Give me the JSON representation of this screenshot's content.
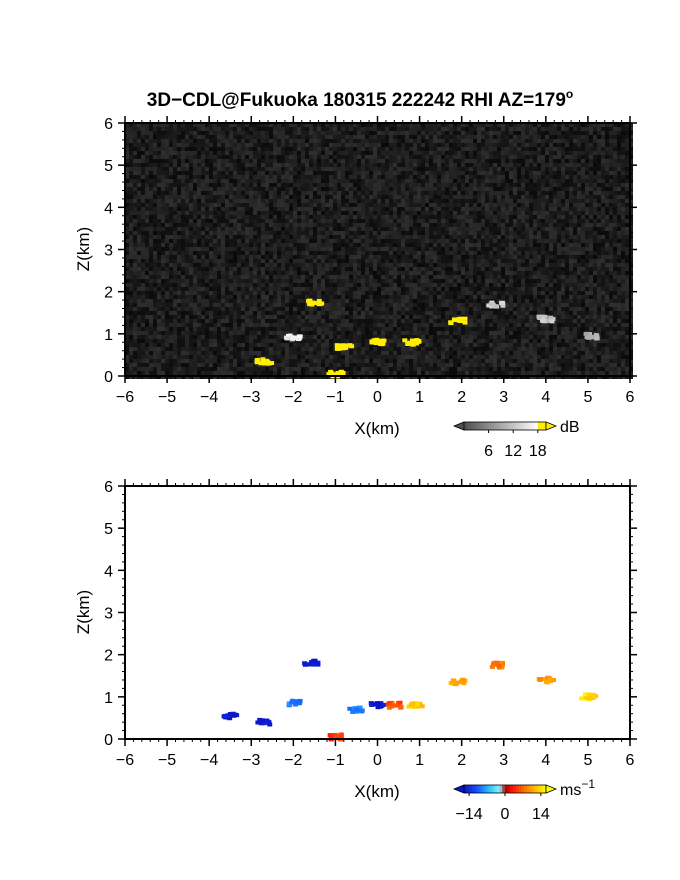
{
  "title": "3D−CDL@Fukuoka 180315 222242 RHI AZ=179",
  "title_sup": "o",
  "chart_data": [
    {
      "type": "heatmap",
      "name": "reflectivity",
      "xlabel": "X(km)",
      "ylabel": "Z(km)",
      "xlim": [
        -6,
        6
      ],
      "ylim": [
        0,
        6
      ],
      "xticks": [
        "−6",
        "−5",
        "−4",
        "−3",
        "−2",
        "−1",
        "0",
        "1",
        "2",
        "3",
        "4",
        "5",
        "6"
      ],
      "yticks": [
        "0",
        "1",
        "2",
        "3",
        "4",
        "5",
        "6"
      ],
      "background": "noise",
      "colorbar": {
        "unit": "dB",
        "ticks": [
          "6",
          "12",
          "18"
        ],
        "range": [
          0,
          20
        ]
      },
      "echo_features": [
        {
          "x": 0.0,
          "z": 0.8,
          "level": 20
        },
        {
          "x": -0.8,
          "z": 0.7,
          "level": 20
        },
        {
          "x": 0.8,
          "z": 0.8,
          "level": 20
        },
        {
          "x": 1.9,
          "z": 1.3,
          "level": 20
        },
        {
          "x": -1.5,
          "z": 1.75,
          "level": 20
        },
        {
          "x": -2.0,
          "z": 0.9,
          "level": 16
        },
        {
          "x": 2.8,
          "z": 1.7,
          "level": 13
        },
        {
          "x": 4.0,
          "z": 1.35,
          "level": 12
        },
        {
          "x": 5.1,
          "z": 0.95,
          "level": 10
        },
        {
          "x": -2.7,
          "z": 0.35,
          "level": 20
        },
        {
          "x": -1.0,
          "z": 0.05,
          "level": 20
        }
      ]
    },
    {
      "type": "heatmap",
      "name": "doppler_velocity",
      "xlabel": "X(km)",
      "ylabel": "Z(km)",
      "xlim": [
        -6,
        6
      ],
      "ylim": [
        0,
        6
      ],
      "xticks": [
        "−6",
        "−5",
        "−4",
        "−3",
        "−2",
        "−1",
        "0",
        "1",
        "2",
        "3",
        "4",
        "5",
        "6"
      ],
      "yticks": [
        "0",
        "1",
        "2",
        "3",
        "4",
        "5",
        "6"
      ],
      "colorbar": {
        "unit": "ms",
        "unit_sup": "−1",
        "ticks": [
          "−14",
          "0",
          "14"
        ],
        "range": [
          -16,
          16
        ]
      },
      "echo_features": [
        {
          "x": -1.6,
          "z": 1.8,
          "v": -16
        },
        {
          "x": -2.0,
          "z": 0.85,
          "v": -9
        },
        {
          "x": -0.5,
          "z": 0.7,
          "v": -9
        },
        {
          "x": 0.0,
          "z": 0.8,
          "v": -16
        },
        {
          "x": 0.4,
          "z": 0.8,
          "v": 6
        },
        {
          "x": 0.9,
          "z": 0.8,
          "v": 13
        },
        {
          "x": 1.9,
          "z": 1.35,
          "v": 11
        },
        {
          "x": 2.8,
          "z": 1.75,
          "v": 8
        },
        {
          "x": 4.0,
          "z": 1.4,
          "v": 10
        },
        {
          "x": 5.0,
          "z": 1.0,
          "v": 14
        },
        {
          "x": -3.5,
          "z": 0.55,
          "v": -16
        },
        {
          "x": -2.7,
          "z": 0.4,
          "v": -16
        },
        {
          "x": -1.0,
          "z": 0.05,
          "v": 5
        }
      ]
    }
  ]
}
